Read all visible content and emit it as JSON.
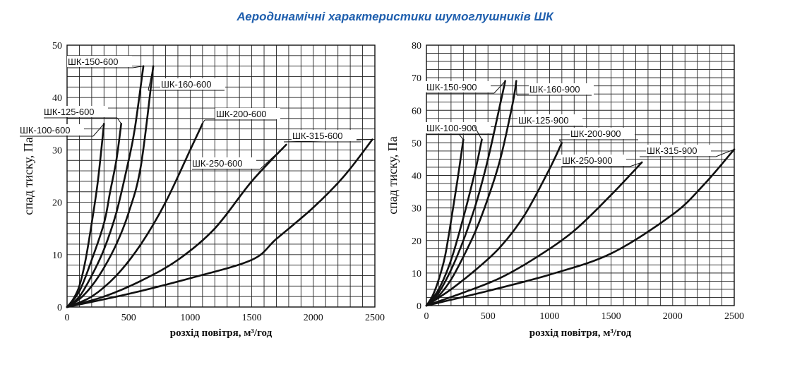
{
  "title": "Аеродинамічні характеристики шумоглушників ШК",
  "chart_data": [
    {
      "type": "line",
      "ylabel": "спад тиску, Па",
      "xlabel": "розхід повітря, м³/год",
      "xlim": [
        0,
        2500
      ],
      "ylim": [
        0,
        50
      ],
      "xticks": [
        0,
        500,
        1000,
        1500,
        2000,
        2500
      ],
      "yticks": [
        0,
        10,
        20,
        30,
        40,
        50
      ],
      "grid": true,
      "series": [
        {
          "name": "ШК-100-600",
          "x": [
            0,
            50,
            100,
            150,
            200,
            250,
            300
          ],
          "y": [
            0,
            1.5,
            4,
            9,
            16,
            24,
            35
          ]
        },
        {
          "name": "ШК-125-600",
          "x": [
            0,
            100,
            200,
            300,
            350,
            400,
            440
          ],
          "y": [
            0,
            3,
            9,
            16,
            22,
            28,
            35
          ]
        },
        {
          "name": "ШК-150-600",
          "x": [
            0,
            100,
            200,
            300,
            400,
            500,
            550,
            620
          ],
          "y": [
            0,
            2,
            6,
            11,
            18,
            28,
            34,
            46
          ]
        },
        {
          "name": "ШК-160-600",
          "x": [
            0,
            100,
            200,
            300,
            400,
            500,
            600,
            700
          ],
          "y": [
            0,
            1.5,
            4,
            7.5,
            12,
            18,
            27,
            46
          ]
        },
        {
          "name": "ШК-200-600",
          "x": [
            0,
            200,
            400,
            600,
            800,
            1000,
            1100
          ],
          "y": [
            0,
            2,
            6,
            12,
            20,
            30,
            35
          ]
        },
        {
          "name": "ШК-250-600",
          "x": [
            0,
            300,
            600,
            900,
            1200,
            1500,
            1780
          ],
          "y": [
            0,
            2,
            5,
            9,
            15,
            24,
            31
          ]
        },
        {
          "name": "ШК-315-600",
          "x": [
            0,
            500,
            1000,
            1500,
            1700,
            2000,
            2250,
            2480
          ],
          "y": [
            0,
            2.5,
            5.5,
            9,
            13,
            19,
            25,
            32
          ]
        }
      ]
    },
    {
      "type": "line",
      "ylabel": "спад тиску, Па",
      "xlabel": "розхід повітря, м³/год",
      "xlim": [
        0,
        2500
      ],
      "ylim": [
        0,
        80
      ],
      "xticks": [
        0,
        500,
        1000,
        1500,
        2000,
        2500
      ],
      "yticks": [
        0,
        10,
        20,
        30,
        40,
        50,
        60,
        70,
        80
      ],
      "grid": true,
      "series": [
        {
          "name": "ШК-100-900",
          "x": [
            0,
            50,
            100,
            150,
            200,
            250,
            300
          ],
          "y": [
            0,
            3,
            8,
            15,
            26,
            38,
            51
          ]
        },
        {
          "name": "ШК-125-900",
          "x": [
            0,
            100,
            200,
            300,
            400,
            450
          ],
          "y": [
            0,
            5,
            14,
            27,
            42,
            51
          ]
        },
        {
          "name": "ШК-150-900",
          "x": [
            0,
            100,
            200,
            300,
            400,
            500,
            600,
            640
          ],
          "y": [
            0,
            4,
            11,
            20,
            31,
            45,
            62,
            69
          ]
        },
        {
          "name": "ШК-160-900",
          "x": [
            0,
            100,
            200,
            300,
            400,
            500,
            600,
            700,
            730
          ],
          "y": [
            0,
            3,
            8,
            15,
            23,
            33,
            45,
            62,
            69
          ]
        },
        {
          "name": "ШК-200-900",
          "x": [
            0,
            200,
            400,
            600,
            800,
            1000,
            1100
          ],
          "y": [
            0,
            5,
            11,
            18,
            28,
            42,
            50
          ]
        },
        {
          "name": "ШК-250-900",
          "x": [
            0,
            300,
            600,
            900,
            1200,
            1500,
            1750
          ],
          "y": [
            0,
            4,
            8.5,
            15,
            23,
            34,
            44
          ]
        },
        {
          "name": "ШК-315-900",
          "x": [
            0,
            500,
            1000,
            1500,
            2000,
            2250,
            2500
          ],
          "y": [
            0,
            4.5,
            9.5,
            16,
            28,
            37,
            48
          ]
        }
      ]
    }
  ]
}
